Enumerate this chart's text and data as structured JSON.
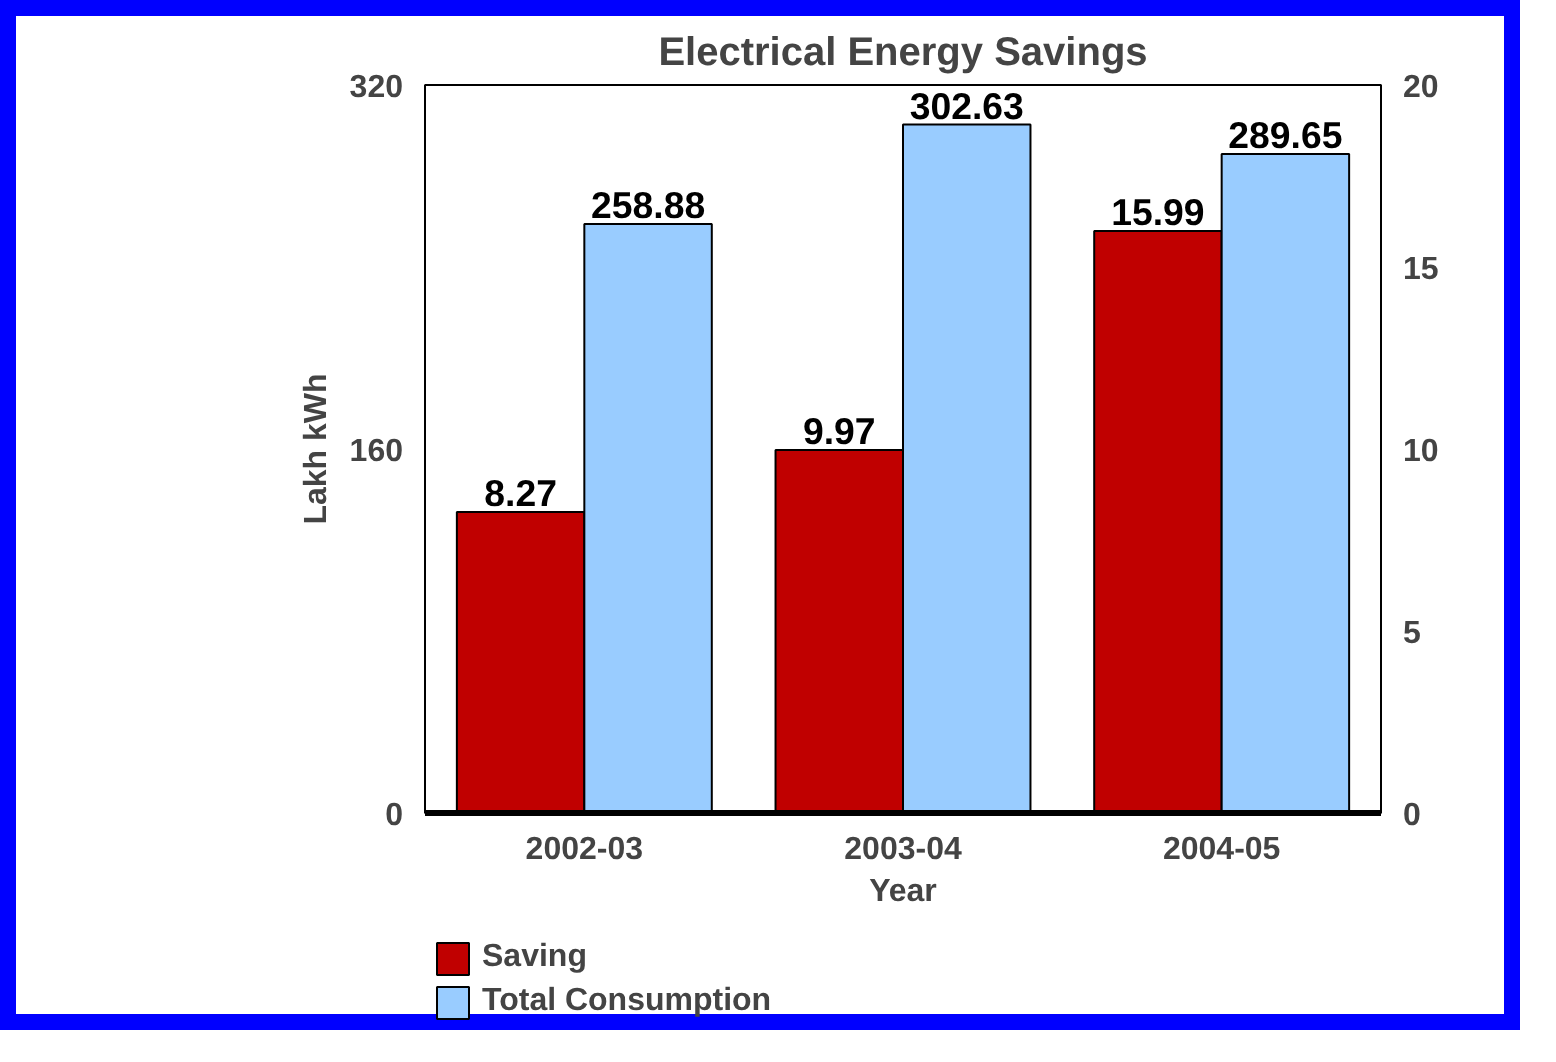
{
  "chart_data": {
    "type": "bar",
    "title": "Electrical Energy Savings",
    "xlabel": "Year",
    "ylabel": "Lakh kWh",
    "categories": [
      "2002-03",
      "2003-04",
      "2004-05"
    ],
    "series": [
      {
        "name": "Saving",
        "color": "#c00000",
        "axis": "y2",
        "values": [
          8.27,
          9.97,
          15.99
        ]
      },
      {
        "name": "Total Consumption",
        "color": "#99ccff",
        "values": [
          258.88,
          302.63,
          289.65
        ]
      }
    ],
    "ylim": [
      0,
      320
    ],
    "yticks": [
      0,
      160,
      320
    ],
    "y2lim": [
      0,
      20
    ],
    "y2ticks": [
      0,
      5,
      10,
      15,
      20
    ],
    "data_labels": true,
    "grid": false,
    "legend": "bottom left"
  }
}
